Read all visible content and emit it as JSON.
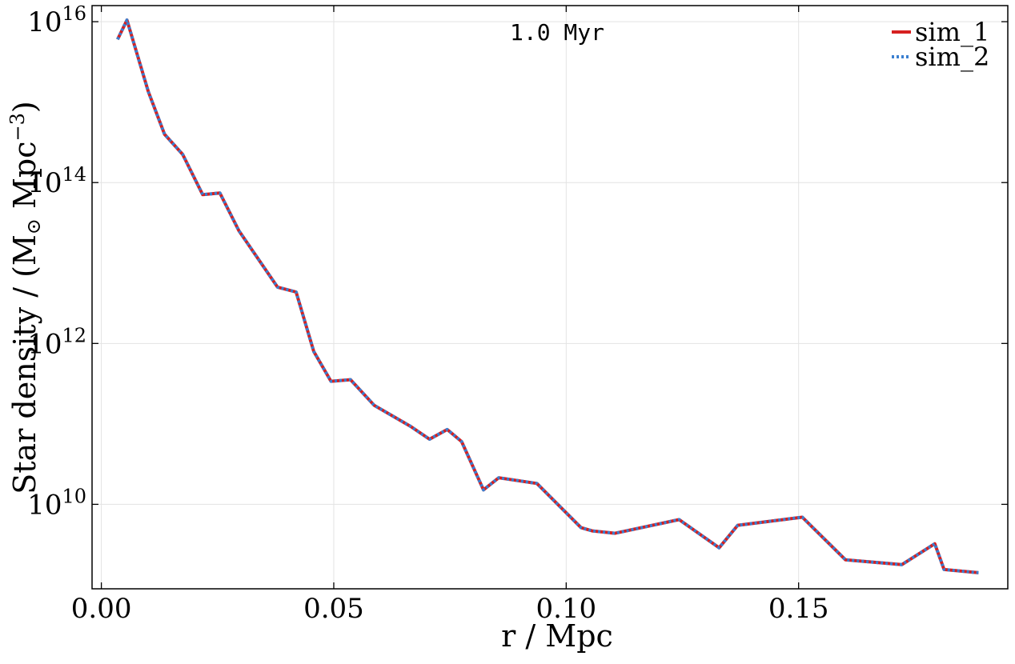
{
  "chart_data": {
    "type": "line",
    "annotation": "1.0 Myr",
    "xlabel": "r / Mpc",
    "ylabel_main": "Star density / (M",
    "ylabel_sun": "⊙",
    "ylabel_unit": "Mpc",
    "ylabel_exp": "−3",
    "ylabel_close": ")",
    "xlim": [
      -0.002,
      0.195
    ],
    "ylim_log10": [
      8.95,
      16.2
    ],
    "y_scale": "log",
    "grid": true,
    "legend_position": "top-right",
    "x_ticks": [
      {
        "value": 0.0,
        "label": "0.00"
      },
      {
        "value": 0.05,
        "label": "0.05"
      },
      {
        "value": 0.1,
        "label": "0.10"
      },
      {
        "value": 0.15,
        "label": "0.15"
      }
    ],
    "y_ticks": [
      {
        "value": 10,
        "base": "10",
        "exp": "10"
      },
      {
        "value": 12,
        "base": "10",
        "exp": "12"
      },
      {
        "value": 14,
        "base": "10",
        "exp": "14"
      },
      {
        "value": 16,
        "base": "10",
        "exp": "16"
      }
    ],
    "x": [
      0.0035,
      0.0055,
      0.0101,
      0.0136,
      0.0175,
      0.0218,
      0.0255,
      0.0296,
      0.0379,
      0.0419,
      0.0457,
      0.0494,
      0.0536,
      0.0587,
      0.0665,
      0.0706,
      0.0744,
      0.0775,
      0.0822,
      0.0855,
      0.0937,
      0.1032,
      0.1056,
      0.1105,
      0.1243,
      0.1329,
      0.1369,
      0.1508,
      0.1601,
      0.1722,
      0.1793,
      0.1813,
      0.1887
    ],
    "series": [
      {
        "name": "sim_1",
        "color": "#d62020",
        "dash": "solid",
        "values_log10": [
          15.78,
          16.02,
          15.13,
          14.6,
          14.35,
          13.85,
          13.87,
          13.4,
          12.7,
          12.64,
          11.9,
          11.53,
          11.55,
          11.23,
          10.97,
          10.81,
          10.93,
          10.78,
          10.18,
          10.33,
          10.26,
          9.71,
          9.67,
          9.64,
          9.81,
          9.46,
          9.74,
          9.84,
          9.31,
          9.25,
          9.51,
          9.19,
          9.15
        ]
      },
      {
        "name": "sim_2",
        "color": "#3a7fd0",
        "dash": "dotted",
        "values_log10": [
          15.78,
          16.02,
          15.13,
          14.6,
          14.35,
          13.85,
          13.87,
          13.4,
          12.7,
          12.64,
          11.9,
          11.53,
          11.55,
          11.23,
          10.97,
          10.81,
          10.93,
          10.78,
          10.18,
          10.33,
          10.26,
          9.71,
          9.67,
          9.64,
          9.81,
          9.46,
          9.74,
          9.84,
          9.31,
          9.25,
          9.51,
          9.19,
          9.15
        ]
      }
    ]
  }
}
